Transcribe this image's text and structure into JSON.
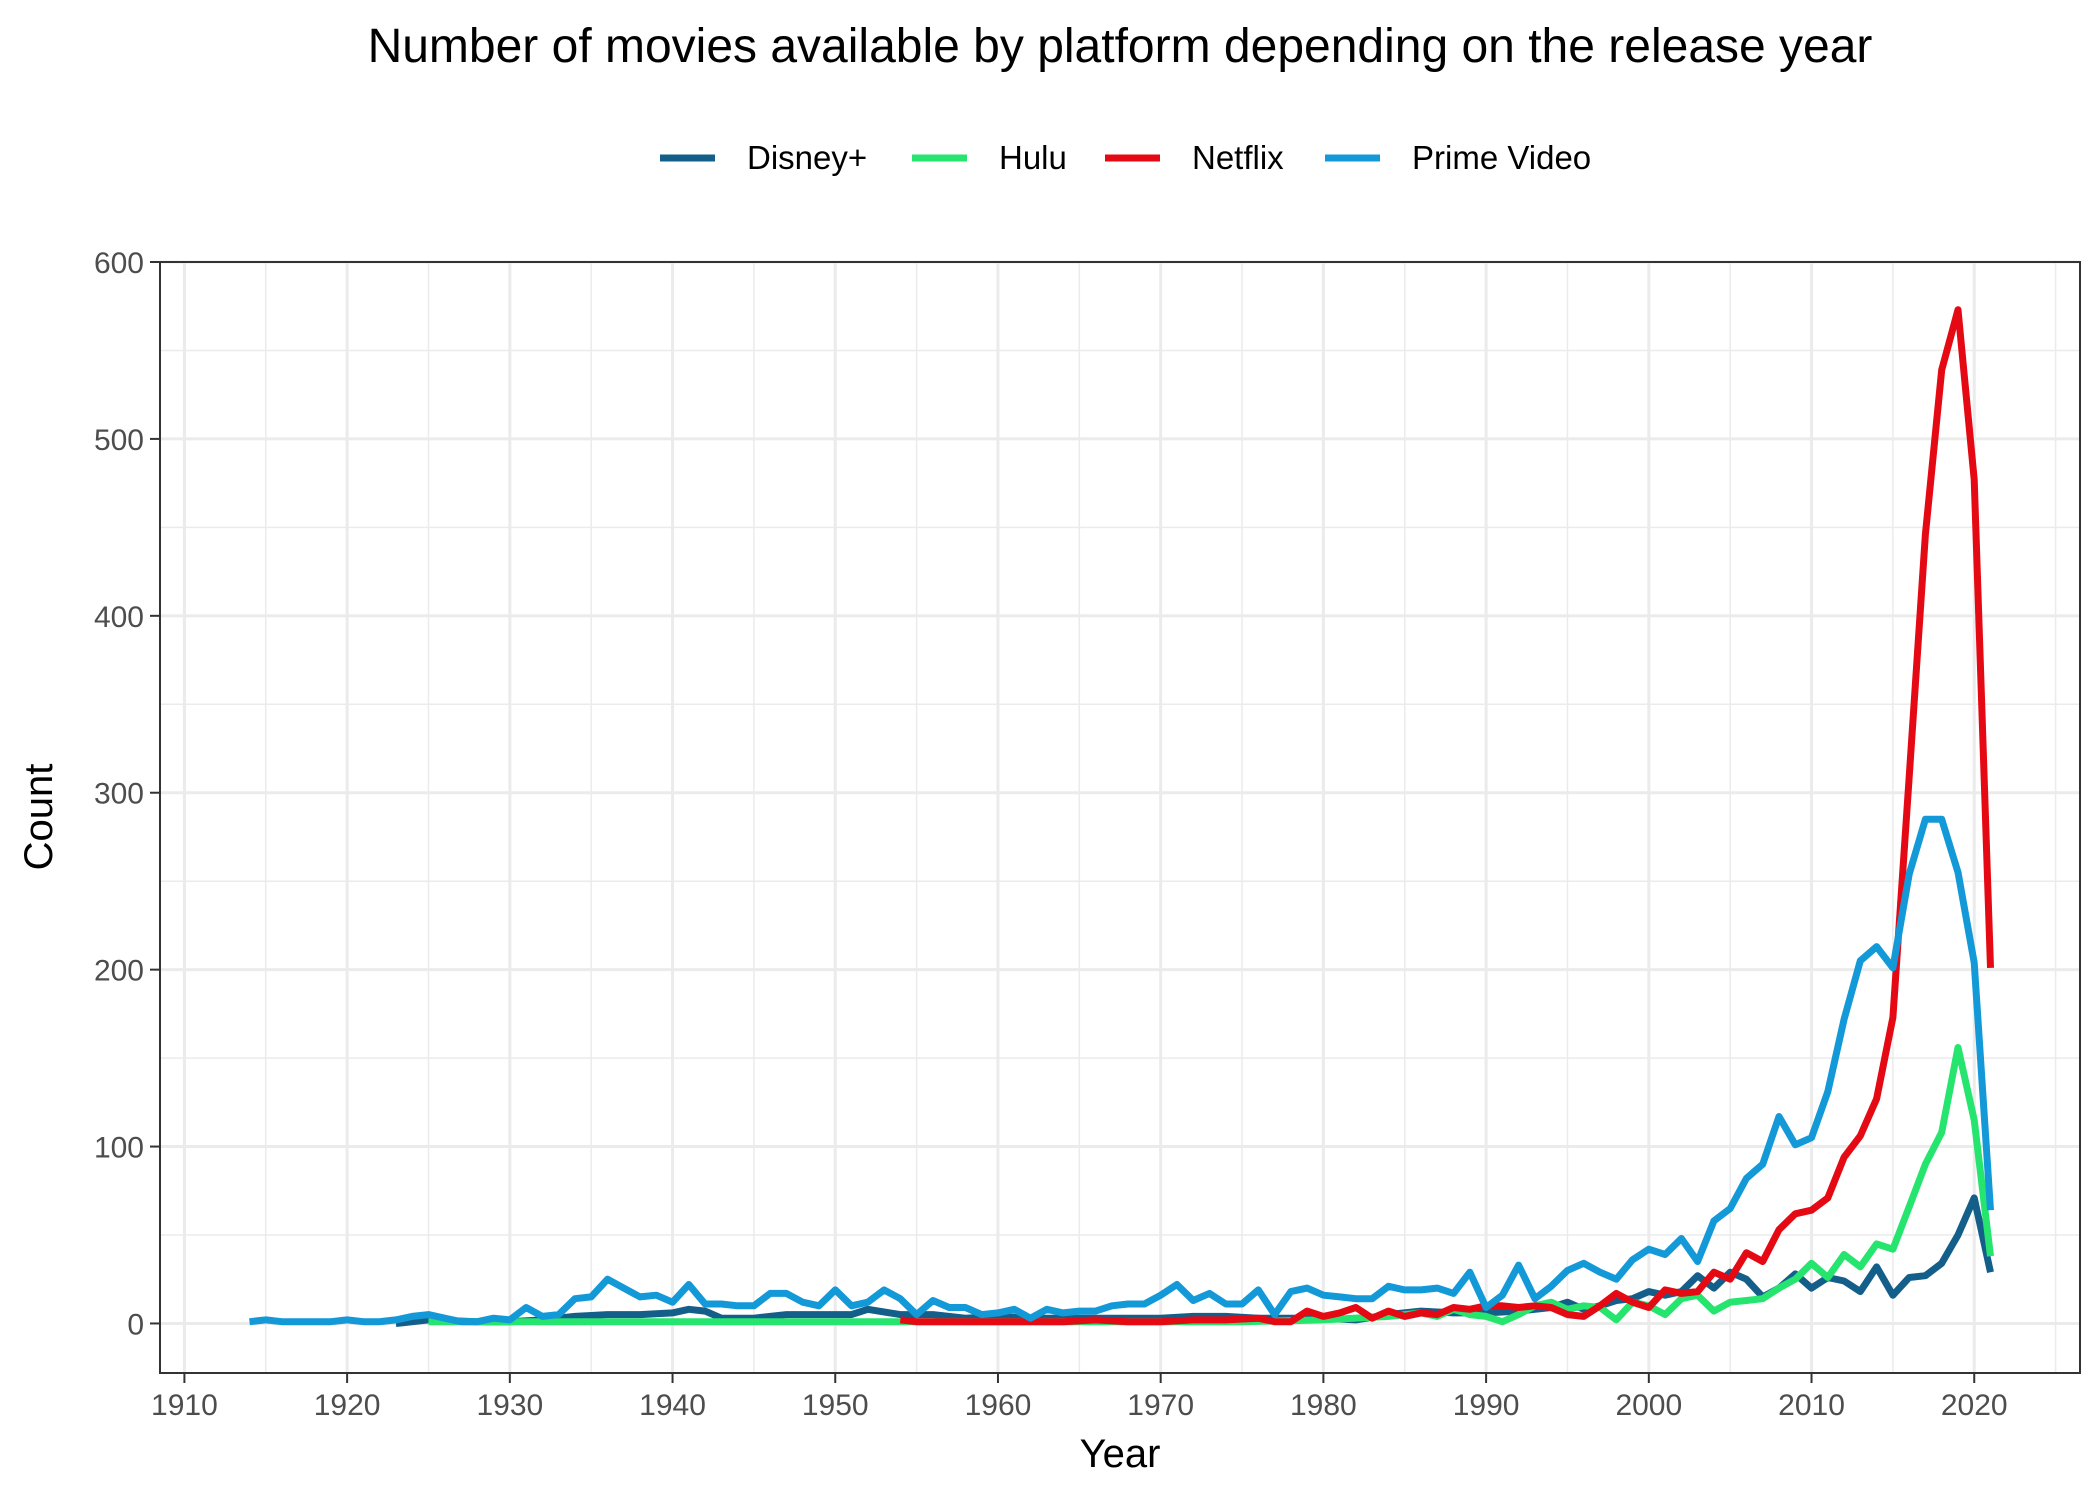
{
  "chart_data": {
    "type": "line",
    "title": "Number of movies available by platform depending on the release year",
    "xlabel": "Year",
    "ylabel": "Count",
    "xlim": [
      1908.5,
      2026.5
    ],
    "ylim": [
      -28,
      600
    ],
    "xticks": [
      1910,
      1920,
      1930,
      1940,
      1950,
      1960,
      1970,
      1980,
      1990,
      2000,
      2010,
      2020
    ],
    "yticks": [
      0,
      100,
      200,
      300,
      400,
      500,
      600
    ],
    "legend_position": "top",
    "grid": true,
    "series": [
      {
        "name": "Disney+",
        "color": "#145f8a",
        "x": [
          1923,
          1925,
          1928,
          1930,
          1932,
          1934,
          1936,
          1938,
          1940,
          1941,
          1942,
          1943,
          1945,
          1947,
          1949,
          1950,
          1951,
          1952,
          1954,
          1956,
          1958,
          1960,
          1962,
          1964,
          1966,
          1968,
          1970,
          1972,
          1974,
          1976,
          1978,
          1980,
          1982,
          1984,
          1986,
          1988,
          1990,
          1992,
          1994,
          1995,
          1996,
          1997,
          1998,
          1999,
          2000,
          2001,
          2002,
          2003,
          2004,
          2005,
          2006,
          2007,
          2008,
          2009,
          2010,
          2011,
          2012,
          2013,
          2014,
          2015,
          2016,
          2017,
          2018,
          2019,
          2020,
          2021
        ],
        "y": [
          0,
          2,
          1,
          1,
          2,
          4,
          5,
          5,
          6,
          8,
          7,
          3,
          3,
          5,
          5,
          5,
          5,
          8,
          5,
          5,
          3,
          4,
          3,
          3,
          3,
          3,
          3,
          4,
          4,
          3,
          3,
          3,
          2,
          5,
          7,
          6,
          6,
          7,
          9,
          12,
          8,
          10,
          13,
          14,
          18,
          16,
          18,
          27,
          20,
          29,
          25,
          15,
          20,
          28,
          20,
          26,
          24,
          18,
          32,
          16,
          26,
          27,
          34,
          50,
          71,
          29
        ]
      },
      {
        "name": "Hulu",
        "color": "#26e56f",
        "x": [
          1925,
          1930,
          1935,
          1940,
          1945,
          1950,
          1955,
          1960,
          1965,
          1970,
          1975,
          1980,
          1984,
          1986,
          1987,
          1988,
          1989,
          1990,
          1991,
          1992,
          1993,
          1994,
          1995,
          1996,
          1997,
          1998,
          1999,
          2000,
          2001,
          2002,
          2003,
          2004,
          2005,
          2006,
          2007,
          2008,
          2009,
          2010,
          2011,
          2012,
          2013,
          2014,
          2015,
          2016,
          2017,
          2018,
          2019,
          2020,
          2021
        ],
        "y": [
          1,
          1,
          1,
          1,
          1,
          1,
          1,
          1,
          1,
          1,
          1,
          2,
          4,
          6,
          4,
          8,
          5,
          4,
          1,
          5,
          10,
          12,
          8,
          10,
          9,
          2,
          12,
          10,
          5,
          14,
          16,
          7,
          12,
          13,
          14,
          20,
          25,
          34,
          26,
          39,
          32,
          45,
          42,
          66,
          90,
          108,
          156,
          115,
          38
        ]
      },
      {
        "name": "Netflix",
        "color": "#e50914",
        "x": [
          1954,
          1955,
          1957,
          1960,
          1962,
          1964,
          1966,
          1968,
          1970,
          1972,
          1974,
          1976,
          1977,
          1978,
          1979,
          1980,
          1981,
          1982,
          1983,
          1984,
          1985,
          1986,
          1987,
          1988,
          1989,
          1990,
          1991,
          1992,
          1993,
          1994,
          1995,
          1996,
          1997,
          1998,
          1999,
          2000,
          2001,
          2002,
          2003,
          2004,
          2005,
          2006,
          2007,
          2008,
          2009,
          2010,
          2011,
          2012,
          2013,
          2014,
          2015,
          2016,
          2017,
          2018,
          2019,
          2020,
          2021
        ],
        "y": [
          2,
          1,
          1,
          1,
          1,
          1,
          2,
          1,
          1,
          2,
          2,
          3,
          1,
          1,
          7,
          4,
          6,
          9,
          3,
          7,
          4,
          6,
          5,
          9,
          8,
          10,
          10,
          9,
          10,
          9,
          5,
          4,
          10,
          17,
          12,
          9,
          19,
          17,
          18,
          29,
          25,
          40,
          35,
          53,
          62,
          64,
          71,
          94,
          106,
          127,
          173,
          309,
          446,
          539,
          573,
          477,
          201
        ]
      },
      {
        "name": "Prime Video",
        "color": "#1399d8",
        "x": [
          1914,
          1915,
          1916,
          1917,
          1918,
          1919,
          1920,
          1921,
          1922,
          1923,
          1924,
          1925,
          1926,
          1927,
          1928,
          1929,
          1930,
          1931,
          1932,
          1933,
          1934,
          1935,
          1936,
          1937,
          1938,
          1939,
          1940,
          1941,
          1942,
          1943,
          1944,
          1945,
          1946,
          1947,
          1948,
          1949,
          1950,
          1951,
          1952,
          1953,
          1954,
          1955,
          1956,
          1957,
          1958,
          1959,
          1960,
          1961,
          1962,
          1963,
          1964,
          1965,
          1966,
          1967,
          1968,
          1969,
          1970,
          1971,
          1972,
          1973,
          1974,
          1975,
          1976,
          1977,
          1978,
          1979,
          1980,
          1981,
          1982,
          1983,
          1984,
          1985,
          1986,
          1987,
          1988,
          1989,
          1990,
          1991,
          1992,
          1993,
          1994,
          1995,
          1996,
          1997,
          1998,
          1999,
          2000,
          2001,
          2002,
          2003,
          2004,
          2005,
          2006,
          2007,
          2008,
          2009,
          2010,
          2011,
          2012,
          2013,
          2014,
          2015,
          2016,
          2017,
          2018,
          2019,
          2020,
          2021
        ],
        "y": [
          1,
          2,
          1,
          1,
          1,
          1,
          2,
          1,
          1,
          2,
          4,
          5,
          3,
          1,
          1,
          3,
          2,
          9,
          4,
          5,
          14,
          15,
          25,
          20,
          15,
          16,
          12,
          22,
          11,
          11,
          10,
          10,
          17,
          17,
          12,
          10,
          19,
          10,
          12,
          19,
          14,
          5,
          13,
          9,
          9,
          5,
          6,
          8,
          3,
          8,
          6,
          7,
          7,
          10,
          11,
          11,
          16,
          22,
          13,
          17,
          11,
          11,
          19,
          5,
          18,
          20,
          16,
          15,
          14,
          14,
          21,
          19,
          19,
          20,
          17,
          29,
          9,
          16,
          33,
          14,
          21,
          30,
          34,
          29,
          25,
          36,
          42,
          39,
          48,
          35,
          58,
          65,
          82,
          90,
          117,
          101,
          105,
          131,
          172,
          205,
          213,
          201,
          254,
          285,
          285,
          255,
          204,
          64
        ]
      }
    ]
  }
}
